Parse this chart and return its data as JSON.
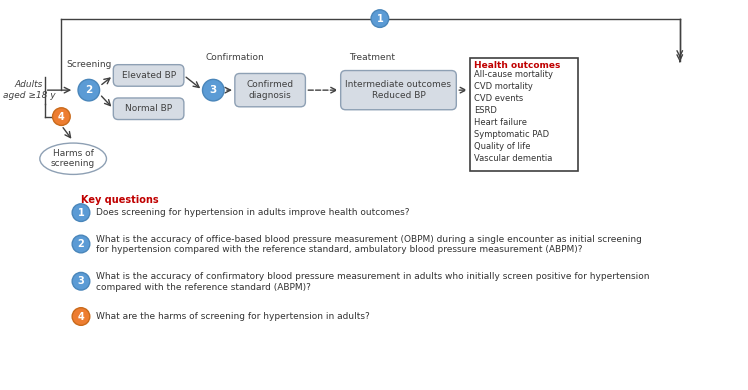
{
  "bg_color": "#ffffff",
  "blue_circle_color": "#5b9bd5",
  "blue_circle_edge": "#4a86ba",
  "orange_circle_color": "#ed7d31",
  "orange_circle_edge": "#c96a1a",
  "box_fill": "#d6dce4",
  "box_edge": "#8ea0b4",
  "outcome_box_edge": "#404040",
  "outcome_box_fill": "#ffffff",
  "outcome_title_color": "#c00000",
  "outcome_list_color": "#333333",
  "label_color": "#404040",
  "kq_label_color": "#c00000",
  "kq_text_color": "#333333",
  "arrow_color": "#404040",
  "screening_label": "Screening",
  "confirmation_label": "Confirmation",
  "treatment_label": "Treatment",
  "adults_label": "Adults\naged ≥18 y",
  "elevated_bp_label": "Elevated BP",
  "normal_bp_label": "Normal BP",
  "confirmed_diag_label": "Confirmed\ndiagnosis",
  "intermediate_label": "Intermediate outcomes\nReduced BP",
  "harms_label": "Harms of\nscreening",
  "health_outcomes_title": "Health outcomes",
  "health_outcomes_list": [
    "All-cause mortality",
    "CVD mortality",
    "CVD events",
    "ESRD",
    "Heart failure",
    "Symptomatic PAD",
    "Quality of life",
    "Vascular dementia"
  ],
  "kq_header": "Key questions",
  "kq1_text": "Does screening for hypertension in adults improve health outcomes?",
  "kq2_line1": "What is the accuracy of office-based blood pressure measurement (OBPM) during a single encounter as initial screening",
  "kq2_line2": "for hypertension compared with the reference standard, ambulatory blood pressure measurement (ABPM)?",
  "kq3_line1": "What is the accuracy of confirmatory blood pressure measurement in adults who initially screen positive for hypertension",
  "kq3_line2": "compared with the reference standard (ABPM)?",
  "kq4_text": "What are the harms of screening for hypertension in adults?"
}
